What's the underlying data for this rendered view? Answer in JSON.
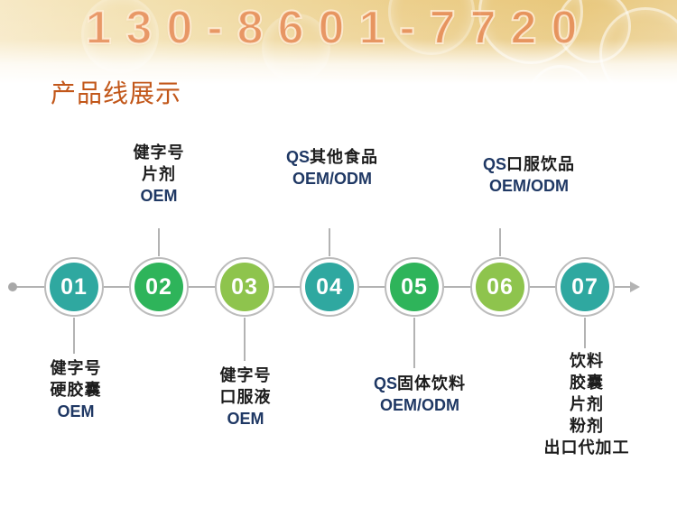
{
  "banner": {
    "phone": "130-8601-7720"
  },
  "page_title": "产品线展示",
  "timeline": {
    "nodes": [
      {
        "number": "01",
        "color": "#2fa8a0",
        "label_position": "below",
        "label_lines": [
          "健字号",
          "硬胶囊",
          "OEM"
        ]
      },
      {
        "number": "02",
        "color": "#2eb45a",
        "label_position": "above",
        "label_lines": [
          "健字号",
          "片剂",
          "OEM"
        ]
      },
      {
        "number": "03",
        "color": "#8ec44d",
        "label_position": "below",
        "label_lines": [
          "健字号",
          "口服液",
          "OEM"
        ]
      },
      {
        "number": "04",
        "color": "#2fa8a0",
        "label_position": "above",
        "label_lines": [
          "QS其他食品",
          "OEM/ODM"
        ]
      },
      {
        "number": "05",
        "color": "#2eb45a",
        "label_position": "below",
        "label_lines": [
          "QS固体饮料",
          "OEM/ODM"
        ]
      },
      {
        "number": "06",
        "color": "#8ec44d",
        "label_position": "above",
        "label_lines": [
          "QS口服饮品",
          "OEM/ODM"
        ]
      },
      {
        "number": "07",
        "color": "#2fa8a0",
        "label_position": "below",
        "label_lines": [
          "饮料",
          "胶囊",
          "片剂",
          "粉剂",
          "出口代加工"
        ]
      }
    ]
  },
  "colors": {
    "title": "#c2571a",
    "phone": "#e88250",
    "teal": "#2fa8a0",
    "green": "#2eb45a",
    "light_green": "#8ec44d",
    "line_gray": "#b3b3b3",
    "chinese_text": "#1c1c1c",
    "latin_text": "#1f3864"
  }
}
